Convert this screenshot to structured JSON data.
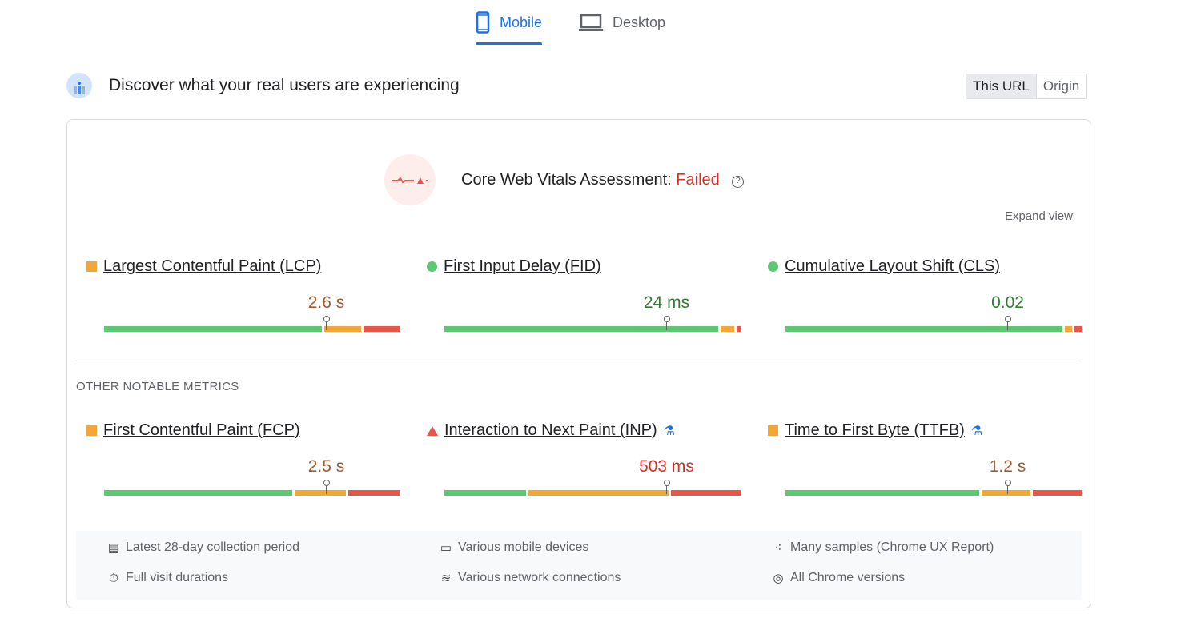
{
  "tabs": [
    {
      "label": "Mobile",
      "icon": "smartphone-icon",
      "active": true
    },
    {
      "label": "Desktop",
      "icon": "laptop-icon",
      "active": false
    }
  ],
  "header": {
    "title": "Discover what your real users are experiencing",
    "toggle": [
      "This URL",
      "Origin"
    ],
    "toggle_selected": "This URL"
  },
  "assessment": {
    "label": "Core Web Vitals Assessment:",
    "status": "Failed",
    "expand": "Expand view"
  },
  "colors": {
    "good": "#5bc971",
    "needs_improvement": "#f4a736",
    "poor": "#e8564a",
    "failed": "#d93025"
  },
  "core_metrics": [
    {
      "name": "Largest Contentful Paint (LCP)",
      "value": "2.6 s",
      "status": "needs-improvement",
      "valueColor": "#a15a2f",
      "distribution": [
        74,
        13,
        13
      ],
      "marker": 75
    },
    {
      "name": "First Input Delay (FID)",
      "value": "24 ms",
      "status": "good",
      "valueColor": "#2e7d32",
      "distribution": [
        93,
        5,
        2
      ],
      "marker": 75
    },
    {
      "name": "Cumulative Layout Shift (CLS)",
      "value": "0.02",
      "status": "good",
      "valueColor": "#2e7d32",
      "distribution": [
        94,
        3,
        3
      ],
      "marker": 75
    }
  ],
  "other_label": "OTHER NOTABLE METRICS",
  "other_metrics": [
    {
      "name": "First Contentful Paint (FCP)",
      "value": "2.5 s",
      "status": "needs-improvement",
      "valueColor": "#a15a2f",
      "distribution": [
        64,
        18,
        18
      ],
      "marker": 75,
      "experimental": false
    },
    {
      "name": "Interaction to Next Paint (INP)",
      "value": "503 ms",
      "status": "poor",
      "valueColor": "#d93025",
      "distribution": [
        28,
        48,
        24
      ],
      "marker": 75,
      "experimental": true
    },
    {
      "name": "Time to First Byte (TTFB)",
      "value": "1.2 s",
      "status": "needs-improvement",
      "valueColor": "#a15a2f",
      "distribution": [
        66,
        17,
        17
      ],
      "marker": 75,
      "experimental": true
    }
  ],
  "footer": {
    "period": "Latest 28-day collection period",
    "devices": "Various mobile devices",
    "samples": "Many samples (",
    "samples_link": "Chrome UX Report",
    "samples_end": ")",
    "durations": "Full visit durations",
    "network": "Various network connections",
    "chrome": "All Chrome versions"
  }
}
